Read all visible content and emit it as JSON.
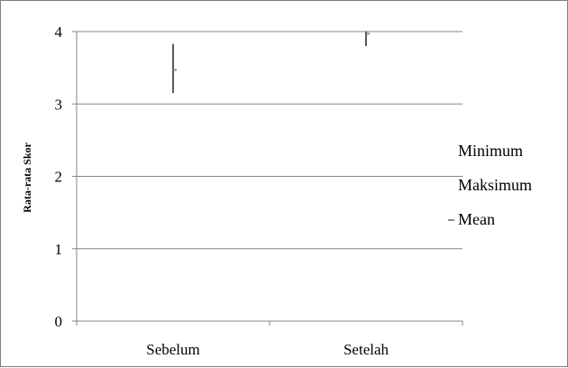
{
  "chart_data": {
    "type": "stock-hlc",
    "categories": [
      "Sebelum",
      "Setelah"
    ],
    "series": [
      {
        "name": "Minimum",
        "values": [
          3.15,
          3.8
        ]
      },
      {
        "name": "Maksimum",
        "values": [
          3.83,
          4.0
        ]
      },
      {
        "name": "Mean",
        "values": [
          3.47,
          3.97
        ]
      }
    ],
    "ylabel": "Rata-rata Skor",
    "ylim": [
      0,
      4
    ],
    "yticks": [
      0,
      1,
      2,
      3,
      4
    ],
    "grid": true,
    "legend": "right",
    "colors": {
      "grid": "#868686",
      "line": "#000000",
      "mean_marker": "#8c8c8c"
    }
  }
}
